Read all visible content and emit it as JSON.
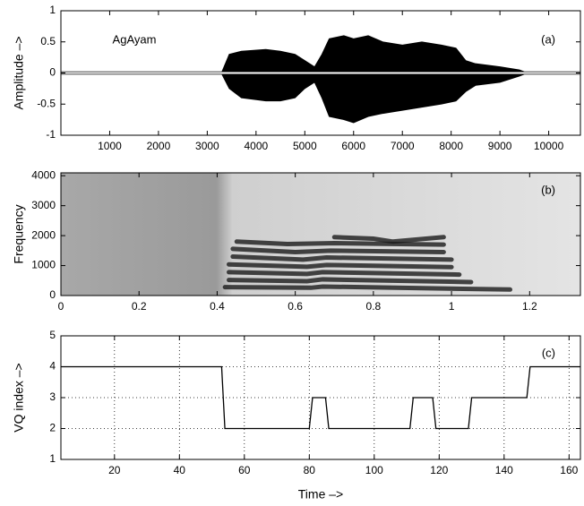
{
  "chart_data": [
    {
      "type": "band",
      "ylabel": "Amplitude –>",
      "annotations": [
        "AgAyam",
        "(a)"
      ],
      "color": "#000000",
      "x": [
        0,
        3300,
        3450,
        3700,
        4200,
        4500,
        4800,
        5000,
        5200,
        5350,
        5500,
        5800,
        6000,
        6300,
        6600,
        7000,
        7400,
        7800,
        8100,
        8300,
        8500,
        9000,
        9400,
        9500,
        10650
      ],
      "upper": [
        0.02,
        0.02,
        0.3,
        0.35,
        0.38,
        0.35,
        0.3,
        0.2,
        0.1,
        0.3,
        0.55,
        0.6,
        0.55,
        0.6,
        0.5,
        0.45,
        0.5,
        0.45,
        0.4,
        0.2,
        0.15,
        0.1,
        0.05,
        0.02,
        0.02
      ],
      "lower": [
        -0.02,
        -0.02,
        -0.25,
        -0.4,
        -0.45,
        -0.45,
        -0.4,
        -0.25,
        -0.15,
        -0.4,
        -0.7,
        -0.75,
        -0.8,
        -0.7,
        -0.65,
        -0.6,
        -0.55,
        -0.5,
        -0.45,
        -0.3,
        -0.2,
        -0.15,
        -0.05,
        -0.02,
        -0.02
      ],
      "xlim": [
        0,
        10650
      ],
      "ylim": [
        -1,
        1
      ],
      "xticks": [
        1000,
        2000,
        3000,
        4000,
        5000,
        6000,
        7000,
        8000,
        9000,
        10000
      ],
      "yticks": [
        -1,
        -0.5,
        0,
        0.5,
        1
      ],
      "grid": false
    },
    {
      "type": "spectrogram",
      "ylabel": "Frequency",
      "annotations": [
        "(b)"
      ],
      "color": "#1a1a1a",
      "series": [
        {
          "x": [
            0.42,
            0.64,
            0.67,
            1.15
          ],
          "values": [
            280,
            260,
            300,
            200
          ]
        },
        {
          "x": [
            0.43,
            0.63,
            0.67,
            1.05
          ],
          "values": [
            520,
            480,
            540,
            450
          ]
        },
        {
          "x": [
            0.43,
            0.63,
            0.67,
            1.02
          ],
          "values": [
            780,
            720,
            780,
            700
          ]
        },
        {
          "x": [
            0.43,
            0.63,
            0.68,
            1.0
          ],
          "values": [
            1040,
            960,
            1020,
            950
          ]
        },
        {
          "x": [
            0.44,
            0.62,
            0.68,
            1.0
          ],
          "values": [
            1300,
            1200,
            1270,
            1200
          ]
        },
        {
          "x": [
            0.44,
            0.6,
            0.69,
            0.98
          ],
          "values": [
            1560,
            1450,
            1500,
            1450
          ]
        },
        {
          "x": [
            0.45,
            0.58,
            0.7,
            0.98
          ],
          "values": [
            1800,
            1720,
            1750,
            1700
          ]
        },
        {
          "x": [
            0.7,
            0.8,
            0.85,
            0.98
          ],
          "values": [
            1950,
            1900,
            1800,
            1950
          ]
        }
      ],
      "xlim": [
        0,
        1.33
      ],
      "ylim": [
        0,
        4096
      ],
      "xticks": [
        0,
        0.2,
        0.4,
        0.6,
        0.8,
        1,
        1.2
      ],
      "yticks": [
        0,
        1000,
        2000,
        3000,
        4000
      ],
      "grid": false
    },
    {
      "type": "line",
      "ylabel": "VQ index –>",
      "xlabel": "Time –>",
      "annotations": [
        "(c)"
      ],
      "color": "#000000",
      "x": [
        3.5,
        53,
        54,
        80,
        81,
        85,
        86,
        111,
        112,
        118,
        119,
        129,
        130,
        147,
        148,
        163.5
      ],
      "values": [
        4,
        4,
        2,
        2,
        3,
        3,
        2,
        2,
        3,
        3,
        2,
        2,
        3,
        3,
        4,
        4
      ],
      "xlim": [
        3.5,
        163.5
      ],
      "ylim": [
        1,
        5
      ],
      "xticks": [
        20,
        40,
        60,
        80,
        100,
        120,
        140,
        160
      ],
      "yticks": [
        1,
        2,
        3,
        4,
        5
      ],
      "grid": true
    }
  ]
}
